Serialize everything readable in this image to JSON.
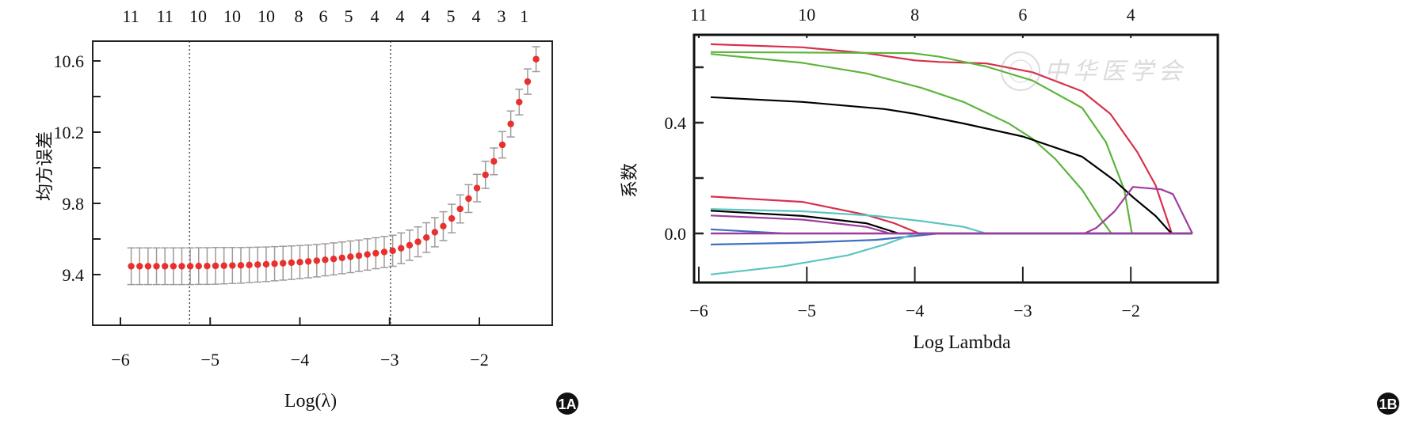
{
  "chart_data": [
    {
      "panel": "1A",
      "type": "scatter",
      "title": "",
      "xlabel": "Log(λ)",
      "ylabel": "均方误差",
      "xlim": [
        -6.31,
        -1.19
      ],
      "ylim": [
        9.11,
        10.71
      ],
      "x_ticks": [
        -6,
        -5,
        -4,
        -3,
        -2
      ],
      "x_tick_labels": [
        "−6",
        "−5",
        "−4",
        "−3",
        "−2"
      ],
      "y_ticks": [
        9.4,
        9.6,
        9.8,
        10.0,
        10.2,
        10.4,
        10.6
      ],
      "y_tick_labels": [
        "9.4",
        "",
        "9.8",
        "",
        "10.2",
        "",
        "10.6"
      ],
      "top_axis": {
        "positions": [
          -5.885,
          -5.505,
          -5.135,
          -4.755,
          -4.375,
          -4.013,
          -3.74,
          -3.457,
          -3.166,
          -2.883,
          -2.6,
          -2.318,
          -2.035,
          -1.753,
          -1.5
        ],
        "labels": [
          "11",
          "11",
          "10",
          "10",
          "10",
          "8",
          "6",
          "5",
          "4",
          "4",
          "4",
          "5",
          "4",
          "3",
          "1"
        ]
      },
      "vlines": [
        -5.23,
        -2.99
      ],
      "x_start": -5.88,
      "x_step": 0.094,
      "mean": [
        9.447,
        9.447,
        9.447,
        9.447,
        9.447,
        9.447,
        9.447,
        9.447,
        9.448,
        9.448,
        9.449,
        9.45,
        9.451,
        9.452,
        9.454,
        9.456,
        9.458,
        9.461,
        9.464,
        9.467,
        9.47,
        9.474,
        9.478,
        9.483,
        9.488,
        9.494,
        9.5,
        9.506,
        9.513,
        9.52,
        9.527,
        9.534,
        9.548,
        9.565,
        9.584,
        9.608,
        9.638,
        9.672,
        9.715,
        9.769,
        9.827,
        9.886,
        9.96,
        10.036,
        10.129,
        10.246,
        10.369,
        10.484,
        10.61
      ],
      "se": [
        0.103,
        0.103,
        0.103,
        0.103,
        0.103,
        0.103,
        0.103,
        0.103,
        0.103,
        0.103,
        0.103,
        0.102,
        0.101,
        0.1,
        0.099,
        0.098,
        0.097,
        0.096,
        0.095,
        0.094,
        0.093,
        0.092,
        0.091,
        0.09,
        0.09,
        0.089,
        0.089,
        0.088,
        0.088,
        0.087,
        0.087,
        0.087,
        0.086,
        0.085,
        0.084,
        0.083,
        0.082,
        0.081,
        0.08,
        0.079,
        0.078,
        0.077,
        0.076,
        0.075,
        0.074,
        0.073,
        0.072,
        0.071,
        0.07
      ],
      "point_color": "#e8302e",
      "errorbar_color": "#a09a9a"
    },
    {
      "panel": "1B",
      "type": "line",
      "title": "",
      "xlabel": "Log Lambda",
      "ylabel": "系数",
      "xlim": [
        -6.06,
        -1.25
      ],
      "ylim": [
        -0.182,
        0.717
      ],
      "x_ticks": [
        -6,
        -5,
        -4,
        -3,
        -2
      ],
      "x_tick_labels": [
        "−6",
        "−5",
        "−4",
        "−3",
        "−2"
      ],
      "y_ticks": [
        0.0,
        0.2,
        0.4,
        0.6
      ],
      "y_tick_labels": [
        "0.0",
        "",
        "0.4",
        ""
      ],
      "top_axis": {
        "positions": [
          -6,
          -5,
          -4,
          -3,
          -2
        ],
        "labels": [
          "11",
          "10",
          "8",
          "6",
          "4"
        ]
      },
      "series": [
        {
          "name": "red-1",
          "color": "#d8304c",
          "x": [
            -5.89,
            -5.04,
            -4.45,
            -4.0,
            -3.77,
            -3.34,
            -2.91,
            -2.45,
            -2.19,
            -1.94,
            -1.77,
            -1.62,
            -1.43
          ],
          "y": [
            0.683,
            0.672,
            0.651,
            0.625,
            0.619,
            0.614,
            0.582,
            0.513,
            0.432,
            0.294,
            0.174,
            0.0,
            0.0
          ]
        },
        {
          "name": "green-1",
          "color": "#5cb43c",
          "x": [
            -5.89,
            -4.02,
            -3.77,
            -3.34,
            -2.91,
            -2.45,
            -2.23,
            -2.06,
            -1.99,
            -1.43
          ],
          "y": [
            0.655,
            0.651,
            0.638,
            0.603,
            0.552,
            0.453,
            0.329,
            0.157,
            0.0,
            0.0
          ]
        },
        {
          "name": "green-2",
          "color": "#5cb43c",
          "x": [
            -5.89,
            -5.04,
            -4.45,
            -3.94,
            -3.55,
            -3.13,
            -2.91,
            -2.7,
            -2.45,
            -2.28,
            -2.18,
            -1.43
          ],
          "y": [
            0.648,
            0.616,
            0.578,
            0.526,
            0.475,
            0.397,
            0.342,
            0.269,
            0.157,
            0.054,
            0.0,
            0.0
          ]
        },
        {
          "name": "black-1",
          "color": "#000000",
          "x": [
            -5.89,
            -5.04,
            -4.28,
            -4.0,
            -3.55,
            -3.0,
            -2.45,
            -2.15,
            -1.98,
            -1.77,
            -1.64,
            -1.62,
            -1.43
          ],
          "y": [
            0.492,
            0.475,
            0.449,
            0.432,
            0.397,
            0.35,
            0.277,
            0.191,
            0.131,
            0.063,
            0.007,
            0.0,
            0.0
          ]
        },
        {
          "name": "red-2",
          "color": "#d8304c",
          "x": [
            -5.89,
            -5.04,
            -4.45,
            -4.19,
            -3.96,
            -1.43
          ],
          "y": [
            0.133,
            0.114,
            0.067,
            0.037,
            0.0,
            0.0
          ]
        },
        {
          "name": "cyan-1",
          "color": "#5bc4c0",
          "x": [
            -5.89,
            -5.04,
            -4.36,
            -3.94,
            -3.55,
            -3.34,
            -1.43
          ],
          "y": [
            0.088,
            0.08,
            0.063,
            0.045,
            0.024,
            0.0,
            0.0
          ]
        },
        {
          "name": "black-2",
          "color": "#000000",
          "x": [
            -5.89,
            -5.04,
            -4.45,
            -4.15,
            -1.43
          ],
          "y": [
            0.082,
            0.063,
            0.037,
            0.0,
            0.0
          ]
        },
        {
          "name": "purple-1",
          "color": "#a03ca0",
          "x": [
            -5.89,
            -5.04,
            -4.45,
            -4.23,
            -1.43
          ],
          "y": [
            0.065,
            0.05,
            0.024,
            0.0,
            0.0
          ]
        },
        {
          "name": "blue-1",
          "color": "#3f6fbf",
          "x": [
            -5.89,
            -5.21,
            -1.43
          ],
          "y": [
            0.015,
            0.0,
            0.0
          ]
        },
        {
          "name": "blue-2",
          "color": "#3f6fbf",
          "x": [
            -5.89,
            -5.04,
            -4.36,
            -3.77,
            -1.43
          ],
          "y": [
            -0.04,
            -0.033,
            -0.023,
            0.0,
            0.0
          ]
        },
        {
          "name": "cyan-2",
          "color": "#5bc4c0",
          "x": [
            -5.89,
            -5.21,
            -4.62,
            -4.28,
            -4.0,
            -1.43
          ],
          "y": [
            -0.148,
            -0.118,
            -0.079,
            -0.04,
            0.0,
            0.0
          ]
        },
        {
          "name": "purple-2",
          "color": "#a03ca0",
          "x": [
            -5.89,
            -2.43,
            -2.32,
            -2.15,
            -1.98,
            -1.72,
            -1.61,
            -1.43
          ],
          "y": [
            0.0,
            0.0,
            0.02,
            0.08,
            0.168,
            0.159,
            0.142,
            0.0
          ]
        },
        {
          "name": "purple-zero",
          "color": "#a03ca0",
          "x": [
            -5.89,
            -1.43
          ],
          "y": [
            0.0,
            0.0
          ]
        }
      ]
    }
  ],
  "panel_labels": {
    "a": "1A",
    "b": "1B"
  },
  "watermark": "中华医学会"
}
